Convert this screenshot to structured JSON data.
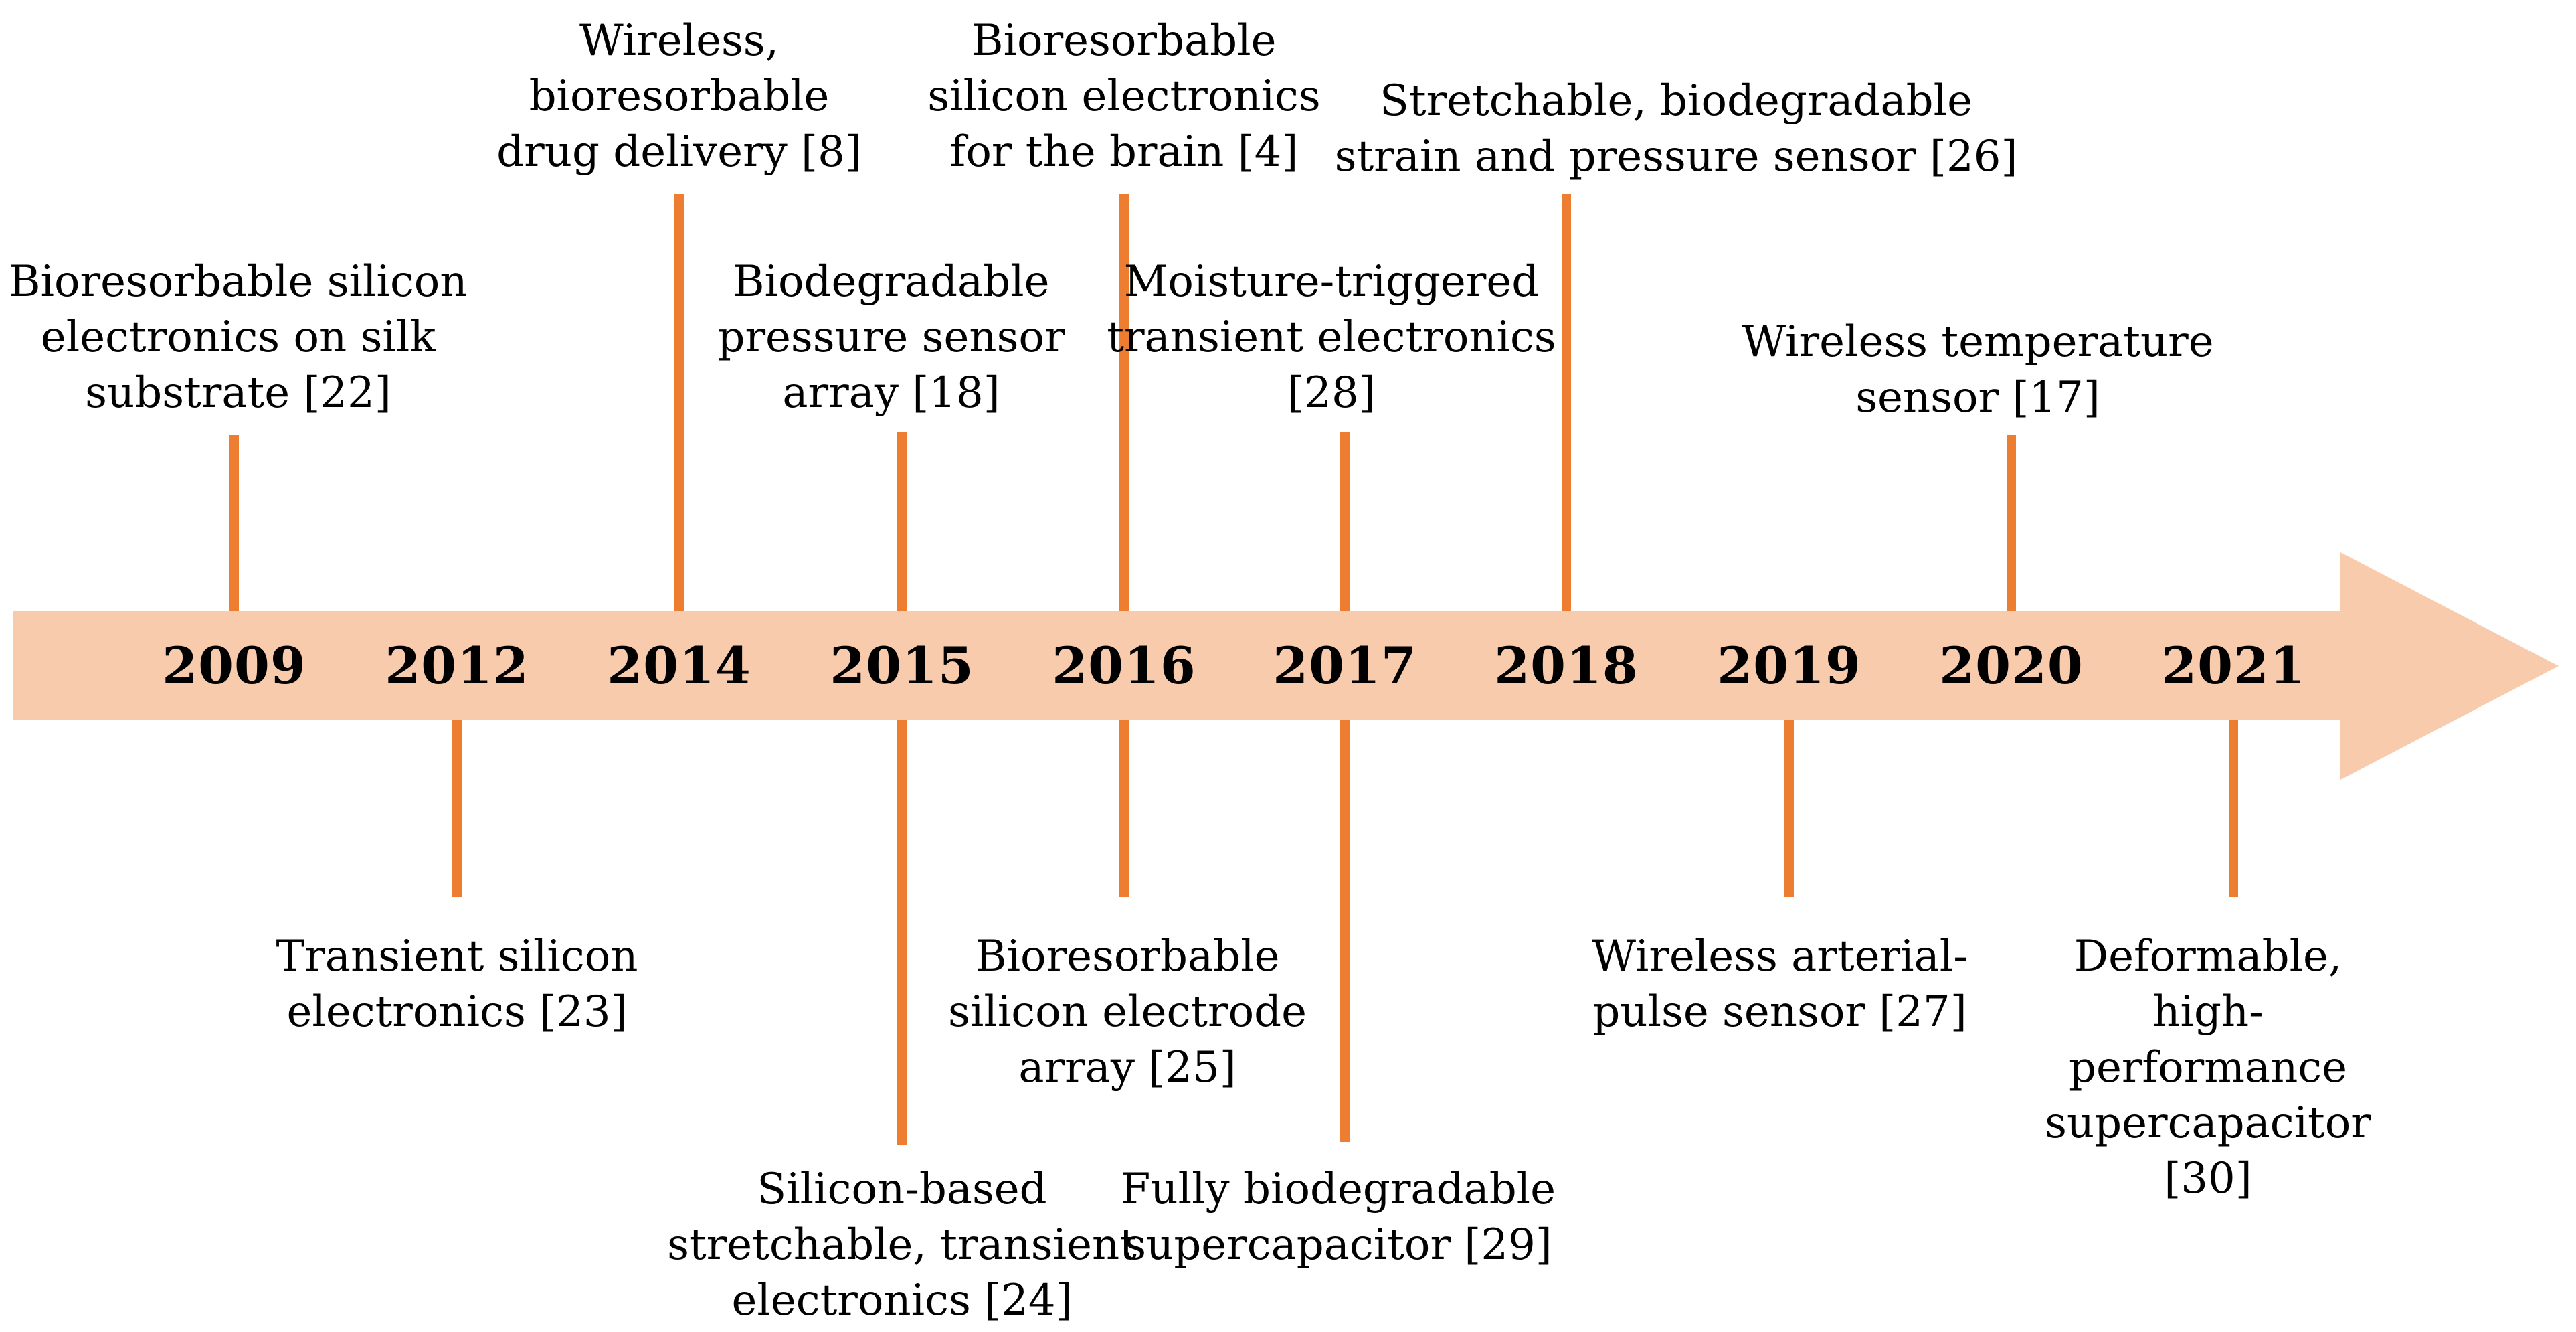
{
  "figure": {
    "type": "timeline-diagram",
    "description": "Timeline of milestones in bioresorbable and transient electronics, 2009-2021"
  },
  "colors": {
    "band": "#F8CBAD",
    "tick": "#ED7D31",
    "text": "#000000",
    "background": "#FFFFFF"
  },
  "timeline": {
    "years": [
      "2009",
      "2012",
      "2014",
      "2015",
      "2016",
      "2017",
      "2018",
      "2019",
      "2020",
      "2021"
    ]
  },
  "events": [
    {
      "year": "2009",
      "side": "above",
      "text": "Bioresorbable silicon\nelectronics on silk\nsubstrate [22]"
    },
    {
      "year": "2014",
      "side": "above",
      "text": "Wireless,\nbioresorbable\ndrug delivery [8]"
    },
    {
      "year": "2015",
      "side": "above",
      "text": "Biodegradable\npressure sensor\narray [18]"
    },
    {
      "year": "2016",
      "side": "above",
      "text": "Bioresorbable\nsilicon electronics\nfor the brain [4]"
    },
    {
      "year": "2017",
      "side": "above",
      "text": "Moisture-triggered\ntransient electronics\n[28]"
    },
    {
      "year": "2018",
      "side": "above",
      "text": "Stretchable, biodegradable\nstrain and pressure sensor [26]"
    },
    {
      "year": "2020",
      "side": "above",
      "text": "Wireless temperature\nsensor [17]"
    },
    {
      "year": "2012",
      "side": "below",
      "text": "Transient silicon\nelectronics [23]"
    },
    {
      "year": "2015",
      "side": "below",
      "text": "Silicon-based\nstretchable, transient\nelectronics [24]"
    },
    {
      "year": "2016",
      "side": "below",
      "text": "Bioresorbable\nsilicon electrode\narray [25]"
    },
    {
      "year": "2017",
      "side": "below",
      "text": "Fully biodegradable\nsupercapacitor [29]"
    },
    {
      "year": "2019",
      "side": "below",
      "text": "Wireless arterial-\npulse sensor [27]"
    },
    {
      "year": "2021",
      "side": "below",
      "text": "Deformable, high-\nperformance\nsupercapacitor [30]"
    }
  ]
}
